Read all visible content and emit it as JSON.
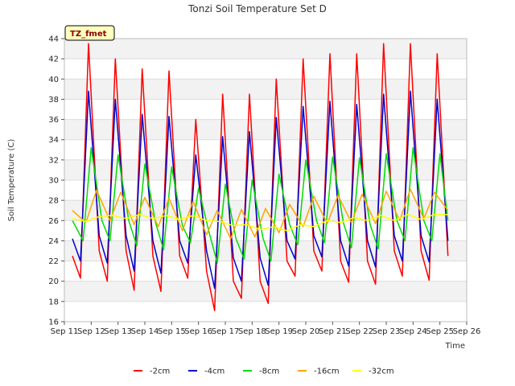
{
  "chart_data": {
    "type": "line",
    "title": "Tonzi Soil Temperature Set D",
    "xlabel": "Time",
    "ylabel": "Soil Temperature (C)",
    "badge": "TZ_fmet",
    "xlim": [
      11,
      26
    ],
    "ylim": [
      16,
      44
    ],
    "x_ticks": [
      {
        "v": 11,
        "label": "Sep 11"
      },
      {
        "v": 12,
        "label": "Sep 12"
      },
      {
        "v": 13,
        "label": "Sep 13"
      },
      {
        "v": 14,
        "label": "Sep 14"
      },
      {
        "v": 15,
        "label": "Sep 15"
      },
      {
        "v": 16,
        "label": "Sep 16"
      },
      {
        "v": 17,
        "label": "Sep 17"
      },
      {
        "v": 18,
        "label": "Sep 18"
      },
      {
        "v": 19,
        "label": "Sep 19"
      },
      {
        "v": 20,
        "label": "Sep 20"
      },
      {
        "v": 21,
        "label": "Sep 21"
      },
      {
        "v": 22,
        "label": "Sep 22"
      },
      {
        "v": 23,
        "label": "Sep 23"
      },
      {
        "v": 24,
        "label": "Sep 24"
      },
      {
        "v": 25,
        "label": "Sep 25"
      },
      {
        "v": 26,
        "label": "Sep 26"
      }
    ],
    "y_ticks": [
      16,
      18,
      20,
      22,
      24,
      26,
      28,
      30,
      32,
      34,
      36,
      38,
      40,
      42,
      44
    ],
    "grid": "horizontal-bands",
    "legend_position": "bottom",
    "series": [
      {
        "name": "-2cm",
        "color": "#ff0000",
        "x": [
          11.3,
          11.6,
          11.9,
          12.3,
          12.6,
          12.9,
          13.3,
          13.6,
          13.9,
          14.3,
          14.6,
          14.9,
          15.3,
          15.6,
          15.9,
          16.3,
          16.6,
          16.9,
          17.3,
          17.6,
          17.9,
          18.3,
          18.6,
          18.9,
          19.3,
          19.6,
          19.9,
          20.3,
          20.6,
          20.9,
          21.3,
          21.6,
          21.9,
          22.3,
          22.6,
          22.9,
          23.3,
          23.6,
          23.9,
          24.3,
          24.6,
          24.9,
          25.3
        ],
        "y": [
          22.5,
          20.3,
          43.5,
          23,
          20,
          42,
          23,
          19.1,
          41,
          22.5,
          19,
          40.8,
          22.5,
          20.3,
          36,
          21,
          17.1,
          38.5,
          20,
          18.3,
          38.5,
          20,
          17.8,
          40,
          22,
          20.5,
          42,
          23,
          21,
          42.5,
          22,
          19.9,
          42.5,
          22,
          19.7,
          43.5,
          23,
          20.5,
          43.5,
          23,
          20.1,
          42.5,
          22.5
        ]
      },
      {
        "name": "-4cm",
        "color": "#0000cc",
        "x": [
          11.3,
          11.6,
          11.9,
          12.3,
          12.6,
          12.9,
          13.3,
          13.6,
          13.9,
          14.3,
          14.6,
          14.9,
          15.3,
          15.6,
          15.9,
          16.3,
          16.6,
          16.9,
          17.3,
          17.6,
          17.9,
          18.3,
          18.6,
          18.9,
          19.3,
          19.6,
          19.9,
          20.3,
          20.6,
          20.9,
          21.3,
          21.6,
          21.9,
          22.3,
          22.6,
          22.9,
          23.3,
          23.6,
          23.9,
          24.3,
          24.6,
          24.9,
          25.3
        ],
        "y": [
          24.2,
          22,
          38.8,
          24.5,
          21.8,
          38,
          24.5,
          21,
          36.5,
          24,
          20.8,
          36.3,
          24,
          21.8,
          32.5,
          23,
          19.3,
          34.3,
          22.3,
          20,
          34.8,
          22.3,
          19.6,
          36.2,
          24,
          22.2,
          37.3,
          24.5,
          22.4,
          37.8,
          24,
          21.5,
          37.5,
          24,
          21.4,
          38.5,
          24.5,
          22,
          38.8,
          24.5,
          21.9,
          38,
          24
        ]
      },
      {
        "name": "-8cm",
        "color": "#00dd00",
        "x": [
          11.3,
          11.7,
          12.0,
          12.4,
          12.7,
          13.0,
          13.4,
          13.7,
          14.0,
          14.4,
          14.7,
          15.0,
          15.4,
          15.7,
          16.0,
          16.4,
          16.7,
          17.0,
          17.4,
          17.7,
          18.0,
          18.4,
          18.7,
          19.0,
          19.4,
          19.7,
          20.0,
          20.4,
          20.7,
          21.0,
          21.4,
          21.7,
          22.0,
          22.4,
          22.7,
          23.0,
          23.4,
          23.7,
          24.0,
          24.4,
          24.7,
          25.0,
          25.3
        ],
        "y": [
          26,
          24,
          33.2,
          26,
          24,
          32.5,
          26,
          23.5,
          31.6,
          25.8,
          23.1,
          31.3,
          25.5,
          23.8,
          29.2,
          24.8,
          21.8,
          29.6,
          24.2,
          22.2,
          30,
          24.3,
          22,
          30.6,
          25.6,
          23.6,
          32,
          26,
          23.8,
          32.3,
          25.8,
          23.3,
          32.2,
          25.6,
          23.2,
          32.6,
          26,
          24,
          33.2,
          26,
          24,
          32.6,
          26
        ]
      },
      {
        "name": "-16cm",
        "color": "#ffa500",
        "x": [
          11.3,
          11.8,
          12.2,
          12.7,
          13.1,
          13.6,
          14.0,
          14.5,
          14.9,
          15.4,
          15.8,
          16.3,
          16.7,
          17.2,
          17.6,
          18.1,
          18.5,
          19.0,
          19.4,
          19.9,
          20.3,
          20.8,
          21.2,
          21.7,
          22.1,
          22.6,
          23.0,
          23.5,
          23.9,
          24.4,
          24.8,
          25.3
        ],
        "y": [
          27,
          25.8,
          29,
          26,
          28.8,
          25.6,
          28.3,
          25.4,
          28.2,
          25,
          27.9,
          24.6,
          27,
          24.2,
          27.1,
          24.4,
          27.2,
          24.8,
          27.6,
          25.4,
          28.4,
          25.7,
          28.5,
          25.8,
          28.6,
          25.7,
          28.9,
          26,
          29.1,
          26.2,
          28.8,
          27
        ]
      },
      {
        "name": "-32cm",
        "color": "#ffff00",
        "x": [
          11.3,
          11.8,
          12.3,
          12.8,
          13.3,
          13.8,
          14.3,
          14.8,
          15.3,
          15.8,
          16.3,
          16.8,
          17.3,
          17.8,
          18.3,
          18.8,
          19.3,
          19.8,
          20.3,
          20.8,
          21.3,
          21.8,
          22.3,
          22.8,
          23.3,
          23.8,
          24.3,
          24.8,
          25.3
        ],
        "y": [
          26.2,
          25.9,
          26.4,
          26.5,
          26.2,
          26.6,
          26.2,
          26.5,
          26.1,
          26.5,
          26,
          25.9,
          25.5,
          25.6,
          25.1,
          25.4,
          25,
          25.6,
          25.4,
          26,
          25.8,
          26.3,
          26,
          26.5,
          26,
          26.6,
          26.1,
          26.6,
          26.6
        ]
      }
    ]
  }
}
